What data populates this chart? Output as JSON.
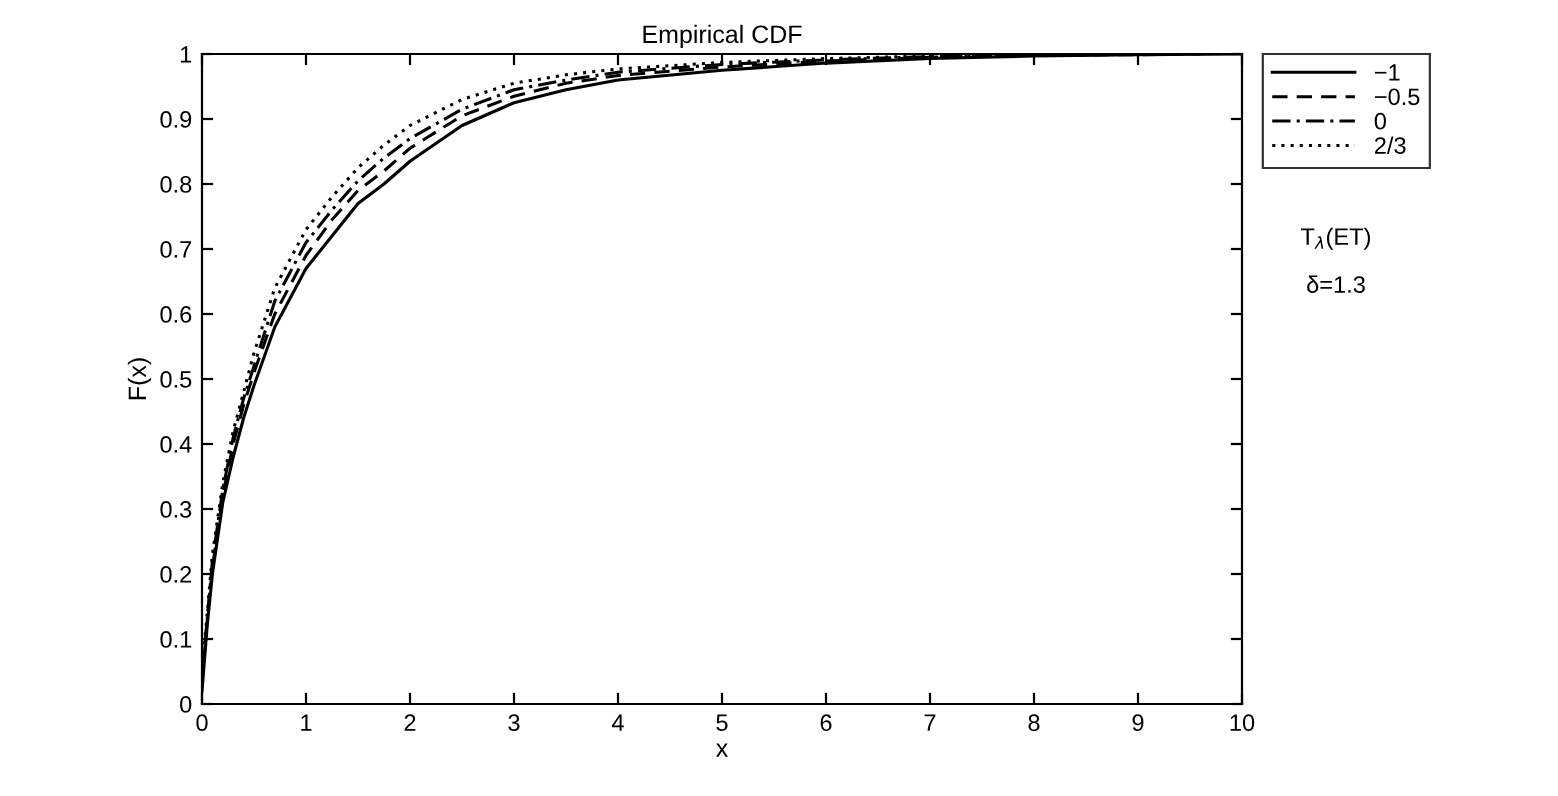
{
  "chart_data": {
    "type": "line",
    "title": "Empirical CDF",
    "xlabel": "x",
    "ylabel": "F(x)",
    "xlim": [
      0,
      10
    ],
    "ylim": [
      0,
      1
    ],
    "xticks": [
      0,
      1,
      2,
      3,
      4,
      5,
      6,
      7,
      8,
      9,
      10
    ],
    "yticks": [
      0,
      0.1,
      0.2,
      0.3,
      0.4,
      0.5,
      0.6,
      0.7,
      0.8,
      0.9,
      1
    ],
    "x": [
      0,
      0.05,
      0.1,
      0.2,
      0.3,
      0.4,
      0.5,
      0.7,
      1,
      1.25,
      1.5,
      1.75,
      2,
      2.5,
      3,
      3.5,
      4,
      5,
      6,
      7,
      8,
      9,
      10
    ],
    "series": [
      {
        "name": "−1",
        "color": "#000000",
        "line_style": "solid",
        "values": [
          0.02,
          0.12,
          0.2,
          0.31,
          0.38,
          0.44,
          0.49,
          0.58,
          0.67,
          0.72,
          0.77,
          0.8,
          0.835,
          0.89,
          0.925,
          0.945,
          0.96,
          0.975,
          0.986,
          0.993,
          0.997,
          0.999,
          1
        ]
      },
      {
        "name": "−0.5",
        "color": "#000000",
        "line_style": "dashed",
        "x": [
          0,
          0.05,
          0.1,
          0.2,
          0.3,
          0.4,
          0.5,
          0.7,
          1,
          1.25,
          1.5,
          1.75,
          2,
          2.5,
          3,
          3.5,
          4,
          5,
          6,
          7,
          8,
          9,
          9.6
        ],
        "values": [
          0.03,
          0.13,
          0.21,
          0.32,
          0.4,
          0.46,
          0.51,
          0.6,
          0.69,
          0.745,
          0.79,
          0.82,
          0.855,
          0.905,
          0.935,
          0.955,
          0.967,
          0.98,
          0.989,
          0.995,
          0.998,
          0.999,
          1
        ]
      },
      {
        "name": "0",
        "color": "#000000",
        "line_style": "dashdot",
        "x": [
          0,
          0.05,
          0.1,
          0.2,
          0.3,
          0.4,
          0.5,
          0.7,
          1,
          1.25,
          1.5,
          1.75,
          2,
          2.5,
          3,
          3.5,
          4,
          5,
          6,
          7,
          8,
          8.6,
          9.2
        ],
        "values": [
          0.04,
          0.13,
          0.22,
          0.33,
          0.41,
          0.47,
          0.52,
          0.62,
          0.71,
          0.76,
          0.805,
          0.84,
          0.87,
          0.915,
          0.945,
          0.96,
          0.972,
          0.984,
          0.991,
          0.996,
          0.998,
          0.999,
          1
        ]
      },
      {
        "name": "2/3",
        "color": "#000000",
        "line_style": "dotted",
        "x": [
          0,
          0.05,
          0.1,
          0.2,
          0.3,
          0.4,
          0.5,
          0.7,
          1,
          1.25,
          1.5,
          1.75,
          2,
          2.5,
          3,
          3.5,
          4,
          5,
          6,
          7,
          8,
          8.8
        ],
        "values": [
          0.05,
          0.14,
          0.23,
          0.34,
          0.42,
          0.48,
          0.54,
          0.64,
          0.73,
          0.78,
          0.825,
          0.86,
          0.89,
          0.93,
          0.955,
          0.968,
          0.977,
          0.987,
          0.993,
          0.997,
          0.999,
          1
        ]
      }
    ],
    "legend": "top right",
    "grid": false,
    "marker": "none",
    "annotations": [
      "T$_{λ}$(ET)",
      "δ=1.3"
    ]
  }
}
